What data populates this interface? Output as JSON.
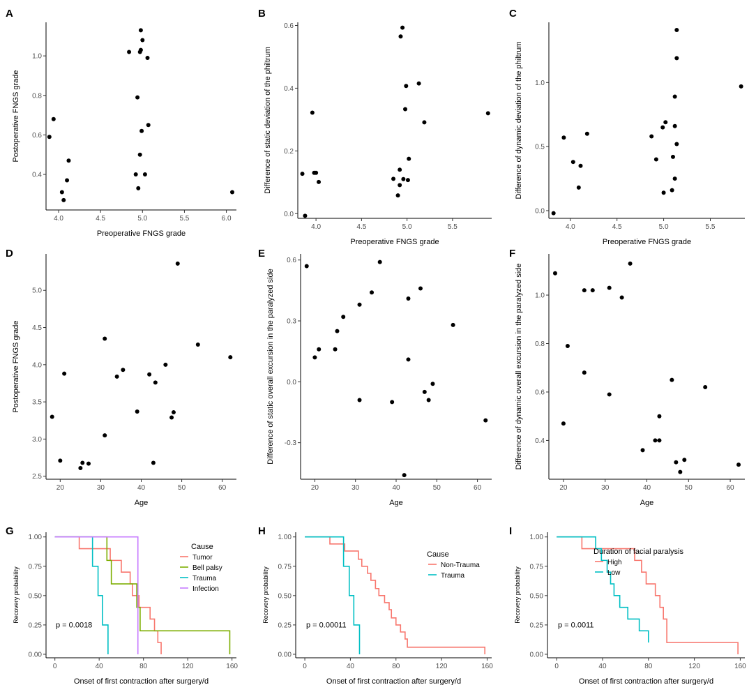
{
  "chart_data": [
    {
      "id": "A",
      "type": "scatter",
      "letter": "A",
      "xlabel": "Preoperative FNGS grade",
      "ylabel": "Postoperative FNGS grade",
      "xlim": [
        3.85,
        6.12
      ],
      "ylim": [
        0.22,
        1.17
      ],
      "xticks": [
        4.0,
        4.5,
        5.0,
        5.5,
        6.0
      ],
      "xticklabels": [
        "4.0",
        "4.5",
        "5.0",
        "5.5",
        "6.0"
      ],
      "yticks": [
        0.4,
        0.6,
        0.8,
        1.0
      ],
      "yticklabels": [
        "0.4",
        "0.6",
        "0.8",
        "1.0"
      ],
      "points": [
        [
          3.89,
          0.59
        ],
        [
          3.94,
          0.68
        ],
        [
          4.04,
          0.31
        ],
        [
          4.06,
          0.27
        ],
        [
          4.1,
          0.37
        ],
        [
          4.12,
          0.47
        ],
        [
          4.84,
          1.02
        ],
        [
          4.92,
          0.4
        ],
        [
          4.94,
          0.79
        ],
        [
          4.95,
          0.33
        ],
        [
          4.97,
          0.5
        ],
        [
          4.97,
          1.02
        ],
        [
          4.98,
          1.13
        ],
        [
          4.98,
          1.03
        ],
        [
          4.99,
          0.62
        ],
        [
          5.0,
          1.08
        ],
        [
          5.03,
          0.4
        ],
        [
          5.06,
          0.99
        ],
        [
          5.07,
          0.65
        ],
        [
          6.07,
          0.31
        ]
      ]
    },
    {
      "id": "B",
      "type": "scatter",
      "letter": "B",
      "xlabel": "Preoperative FNGS grade",
      "ylabel": "Difference of static deviation of the philtrum",
      "xlim": [
        3.8,
        5.93
      ],
      "ylim": [
        -0.015,
        0.61
      ],
      "xticks": [
        4.0,
        4.5,
        5.0,
        5.5
      ],
      "xticklabels": [
        "4.0",
        "4.5",
        "5.0",
        "5.5"
      ],
      "yticks": [
        0.0,
        0.2,
        0.4,
        0.6
      ],
      "yticklabels": [
        "0.0",
        "0.2",
        "0.4",
        "0.6"
      ],
      "points": [
        [
          3.85,
          0.127
        ],
        [
          3.88,
          -0.007
        ],
        [
          3.96,
          0.322
        ],
        [
          3.98,
          0.13
        ],
        [
          4.0,
          0.13
        ],
        [
          4.03,
          0.101
        ],
        [
          4.85,
          0.111
        ],
        [
          4.9,
          0.058
        ],
        [
          4.92,
          0.14
        ],
        [
          4.92,
          0.091
        ],
        [
          4.93,
          0.565
        ],
        [
          4.95,
          0.593
        ],
        [
          4.96,
          0.11
        ],
        [
          4.98,
          0.333
        ],
        [
          4.99,
          0.407
        ],
        [
          5.01,
          0.107
        ],
        [
          5.02,
          0.175
        ],
        [
          5.13,
          0.415
        ],
        [
          5.19,
          0.291
        ],
        [
          5.89,
          0.32
        ]
      ]
    },
    {
      "id": "C",
      "type": "scatter",
      "letter": "C",
      "xlabel": "Preoperative FNGS grade",
      "ylabel": "Difference of dynamic deviation of the philtrum",
      "xlim": [
        3.77,
        5.87
      ],
      "ylim": [
        -0.06,
        1.47
      ],
      "xticks": [
        4.0,
        4.5,
        5.0,
        5.5
      ],
      "xticklabels": [
        "4.0",
        "4.5",
        "5.0",
        "5.5"
      ],
      "yticks": [
        0.0,
        0.5,
        1.0
      ],
      "yticklabels": [
        "0.0",
        "0.5",
        "1.0"
      ],
      "points": [
        [
          3.82,
          -0.02
        ],
        [
          3.93,
          0.57
        ],
        [
          4.03,
          0.38
        ],
        [
          4.09,
          0.18
        ],
        [
          4.11,
          0.35
        ],
        [
          4.18,
          0.6
        ],
        [
          4.87,
          0.58
        ],
        [
          4.92,
          0.4
        ],
        [
          4.99,
          0.65
        ],
        [
          5.0,
          0.14
        ],
        [
          5.02,
          0.69
        ],
        [
          5.09,
          0.16
        ],
        [
          5.1,
          0.42
        ],
        [
          5.12,
          0.66
        ],
        [
          5.12,
          0.89
        ],
        [
          5.12,
          0.25
        ],
        [
          5.14,
          1.19
        ],
        [
          5.14,
          1.41
        ],
        [
          5.14,
          0.52
        ],
        [
          5.83,
          0.97
        ]
      ]
    },
    {
      "id": "D",
      "type": "scatter",
      "letter": "D",
      "xlabel": "Age",
      "ylabel": "Postoperative FNGS grade",
      "xlim": [
        16.5,
        63.5
      ],
      "ylim": [
        2.46,
        5.49
      ],
      "xticks": [
        20,
        30,
        40,
        50,
        60
      ],
      "xticklabels": [
        "20",
        "30",
        "40",
        "50",
        "60"
      ],
      "yticks": [
        2.5,
        3.0,
        3.5,
        4.0,
        4.5,
        5.0
      ],
      "yticklabels": [
        "2.5",
        "3.0",
        "3.5",
        "4.0",
        "4.5",
        "5.0"
      ],
      "points": [
        [
          18,
          3.3
        ],
        [
          20,
          2.71
        ],
        [
          21,
          3.88
        ],
        [
          25,
          2.61
        ],
        [
          25.5,
          2.68
        ],
        [
          27,
          2.67
        ],
        [
          31,
          4.35
        ],
        [
          31,
          3.05
        ],
        [
          34,
          3.84
        ],
        [
          35.5,
          3.93
        ],
        [
          39,
          3.37
        ],
        [
          42,
          3.87
        ],
        [
          43,
          2.68
        ],
        [
          43.5,
          3.76
        ],
        [
          46,
          4.0
        ],
        [
          47.5,
          3.29
        ],
        [
          48,
          3.36
        ],
        [
          49,
          5.36
        ],
        [
          54,
          4.27
        ],
        [
          62,
          4.1
        ]
      ]
    },
    {
      "id": "E",
      "type": "scatter",
      "letter": "E",
      "xlabel": "Age",
      "ylabel": "Difference of static overall excursion in the paralyzed side",
      "xlim": [
        16.5,
        63.5
      ],
      "ylim": [
        -0.48,
        0.63
      ],
      "xticks": [
        20,
        30,
        40,
        50,
        60
      ],
      "xticklabels": [
        "20",
        "30",
        "40",
        "50",
        "60"
      ],
      "yticks": [
        -0.3,
        0.0,
        0.3,
        0.6
      ],
      "yticklabels": [
        "-0.3",
        "0.0",
        "0.3",
        "0.6"
      ],
      "points": [
        [
          18,
          0.57
        ],
        [
          20,
          0.12
        ],
        [
          21,
          0.16
        ],
        [
          25,
          0.16
        ],
        [
          25.5,
          0.25
        ],
        [
          27,
          0.32
        ],
        [
          31,
          0.38
        ],
        [
          31,
          -0.09
        ],
        [
          34,
          0.44
        ],
        [
          36,
          0.59
        ],
        [
          39,
          -0.1
        ],
        [
          42,
          -0.46
        ],
        [
          43,
          0.11
        ],
        [
          43,
          0.41
        ],
        [
          46,
          0.46
        ],
        [
          47,
          -0.05
        ],
        [
          48,
          -0.09
        ],
        [
          49,
          -0.01
        ],
        [
          54,
          0.28
        ],
        [
          62,
          -0.19
        ]
      ]
    },
    {
      "id": "F",
      "type": "scatter",
      "letter": "F",
      "xlabel": "Age",
      "ylabel": "Difference of dynamic overall excursion in the paralyzed side",
      "xlim": [
        16.5,
        63.5
      ],
      "ylim": [
        0.24,
        1.17
      ],
      "xticks": [
        20,
        30,
        40,
        50,
        60
      ],
      "xticklabels": [
        "20",
        "30",
        "40",
        "50",
        "60"
      ],
      "yticks": [
        0.4,
        0.6,
        0.8,
        1.0
      ],
      "yticklabels": [
        "0.4",
        "0.6",
        "0.8",
        "1.0"
      ],
      "points": [
        [
          18,
          1.09
        ],
        [
          20,
          0.47
        ],
        [
          21,
          0.79
        ],
        [
          25,
          0.68
        ],
        [
          25,
          1.02
        ],
        [
          27,
          1.02
        ],
        [
          31,
          1.03
        ],
        [
          31,
          0.59
        ],
        [
          34,
          0.99
        ],
        [
          36,
          1.13
        ],
        [
          39,
          0.36
        ],
        [
          42,
          0.4
        ],
        [
          43,
          0.4
        ],
        [
          43,
          0.5
        ],
        [
          46,
          0.65
        ],
        [
          47,
          0.31
        ],
        [
          48,
          0.27
        ],
        [
          49,
          0.32
        ],
        [
          54,
          0.62
        ],
        [
          62,
          0.3
        ]
      ]
    },
    {
      "id": "G",
      "type": "line",
      "letter": "G",
      "xlabel": "Onset of first  contraction after surgery/d",
      "ylabel": "Recovery probability",
      "xlim": [
        -8,
        164
      ],
      "ylim": [
        -0.03,
        1.04
      ],
      "xticks": [
        0,
        40,
        80,
        120,
        160
      ],
      "xticklabels": [
        "0",
        "40",
        "80",
        "120",
        "160"
      ],
      "yticks": [
        0.0,
        0.25,
        0.5,
        0.75,
        1.0
      ],
      "yticklabels": [
        "0.00",
        "0.25",
        "0.50",
        "0.75",
        "1.00"
      ],
      "legend": {
        "title": "Cause",
        "position": "top-right"
      },
      "pvalue": "p = 0.0018",
      "series": [
        {
          "name": "Tumor",
          "color": "#f8766d",
          "x": [
            0,
            22,
            35,
            50,
            60,
            68,
            70,
            76,
            86,
            90,
            93,
            96
          ],
          "y": [
            1.0,
            0.9,
            0.9,
            0.8,
            0.7,
            0.6,
            0.5,
            0.4,
            0.3,
            0.2,
            0.1,
            0.0
          ]
        },
        {
          "name": "Bell palsy",
          "color": "#7cae00",
          "x": [
            0,
            47,
            51,
            74,
            77,
            80,
            158
          ],
          "y": [
            1.0,
            0.8,
            0.6,
            0.4,
            0.2,
            0.2,
            0.0
          ]
        },
        {
          "name": "Trauma",
          "color": "#00bfc4",
          "x": [
            0,
            34,
            39,
            43,
            48
          ],
          "y": [
            1.0,
            0.75,
            0.5,
            0.25,
            0.0
          ]
        },
        {
          "name": "Infection",
          "color": "#c77cff",
          "x": [
            0,
            75
          ],
          "y": [
            1.0,
            0.0
          ]
        }
      ]
    },
    {
      "id": "H",
      "type": "line",
      "letter": "H",
      "xlabel": "Onset of first  contraction after surgery/d",
      "ylabel": "Recovery probability",
      "xlim": [
        -8,
        164
      ],
      "ylim": [
        -0.03,
        1.04
      ],
      "xticks": [
        0,
        40,
        80,
        120,
        160
      ],
      "xticklabels": [
        "0",
        "40",
        "80",
        "120",
        "160"
      ],
      "yticks": [
        0.0,
        0.25,
        0.5,
        0.75,
        1.0
      ],
      "yticklabels": [
        "0.00",
        "0.25",
        "0.50",
        "0.75",
        "1.00"
      ],
      "legend": {
        "title": "Cause",
        "position": "top-right"
      },
      "pvalue": "p = 0.00011",
      "series": [
        {
          "name": "Non-Trauma",
          "color": "#f8766d",
          "x": [
            0,
            22,
            35,
            47,
            50,
            55,
            58,
            62,
            65,
            70,
            74,
            76,
            80,
            84,
            88,
            90,
            93,
            96,
            158
          ],
          "y": [
            1.0,
            0.94,
            0.88,
            0.81,
            0.75,
            0.69,
            0.63,
            0.56,
            0.5,
            0.44,
            0.38,
            0.31,
            0.25,
            0.19,
            0.13,
            0.06,
            0.06,
            0.06,
            0.0
          ]
        },
        {
          "name": "Trauma",
          "color": "#00bfc4",
          "x": [
            0,
            34,
            39,
            43,
            48
          ],
          "y": [
            1.0,
            0.75,
            0.5,
            0.25,
            0.0
          ]
        }
      ]
    },
    {
      "id": "I",
      "type": "line",
      "letter": "I",
      "xlabel": "Onset of first  contraction after surgery/d",
      "ylabel": "Recovery probability",
      "xlim": [
        -8,
        164
      ],
      "ylim": [
        -0.03,
        1.04
      ],
      "xticks": [
        0,
        40,
        80,
        120,
        160
      ],
      "xticklabels": [
        "0",
        "40",
        "80",
        "120",
        "160"
      ],
      "yticks": [
        0.0,
        0.25,
        0.5,
        0.75,
        1.0
      ],
      "yticklabels": [
        "0.00",
        "0.25",
        "0.50",
        "0.75",
        "1.00"
      ],
      "legend": {
        "title": "Duration of facial paralysis",
        "position": "top-right"
      },
      "pvalue": "p = 0.0011",
      "series": [
        {
          "name": "High",
          "color": "#f8766d",
          "x": [
            0,
            22,
            35,
            68,
            74,
            78,
            86,
            90,
            93,
            96,
            158
          ],
          "y": [
            1.0,
            0.9,
            0.9,
            0.8,
            0.7,
            0.6,
            0.5,
            0.4,
            0.3,
            0.1,
            0.0
          ]
        },
        {
          "name": "Low",
          "color": "#00bfc4",
          "x": [
            0,
            34,
            39,
            44,
            47,
            50,
            55,
            62,
            72,
            80
          ],
          "y": [
            1.0,
            0.9,
            0.8,
            0.7,
            0.6,
            0.5,
            0.4,
            0.3,
            0.2,
            0.1
          ]
        }
      ]
    }
  ]
}
